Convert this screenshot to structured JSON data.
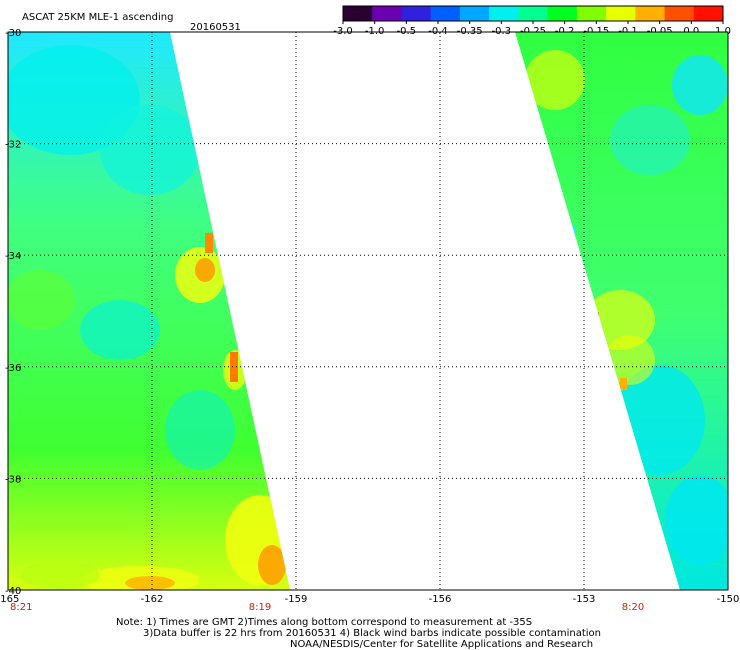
{
  "header": {
    "title": "ASCAT 25KM MLE-1 ascending",
    "date": "20160531"
  },
  "colorbar": {
    "labels": [
      "-3.0",
      "-1.0",
      "-0.5",
      "-0.4",
      "-0.35",
      "-0.3",
      "-0.25",
      "-0.2",
      "-0.15",
      "-0.1",
      "-0.05",
      "0.0",
      "1.0"
    ],
    "colors": [
      "#2a0030",
      "#6a00b0",
      "#3020e0",
      "#0060ff",
      "#00a8ff",
      "#00f0f0",
      "#00ff90",
      "#00ff20",
      "#80ff00",
      "#e8ff00",
      "#ffb000",
      "#ff5000",
      "#ff1000"
    ]
  },
  "map": {
    "lat_labels": [
      "-30",
      "-32",
      "-34",
      "-36",
      "-38",
      "-40"
    ],
    "lon_labels": [
      "-165",
      "-162",
      "-159",
      "-156",
      "-153",
      "-150"
    ],
    "time_labels": [
      "8:21",
      "8:19",
      "8:20"
    ]
  },
  "notes": {
    "line1": "Note: 1) Times are GMT 2)Times along bottom correspond to measurement at -35S",
    "line2": "3)Data buffer is 22 hrs from 20160531 4) Black wind barbs indicate possible contamination",
    "line3": "NOAA/NESDIS/Center for Satellite Applications and Research"
  }
}
